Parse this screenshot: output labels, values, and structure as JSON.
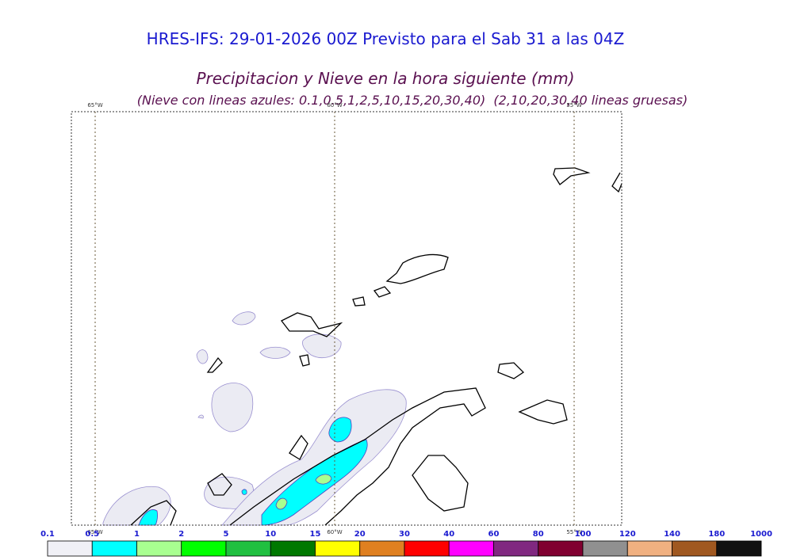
{
  "header": {
    "title": "HRES-IFS: 29-01-2026 00Z Previsto para el Sab 31 a las 04Z",
    "subtitle": "Precipitacion y Nieve en la hora siguiente (mm)",
    "note": "(Nieve con lineas azules: 0.1,0.5,1,2,5,10,15,20,30,40)  (2,10,20,30,40 lineas gruesas)"
  },
  "map": {
    "meridians": [
      "65°W",
      "60°W",
      "55°W"
    ]
  },
  "colorbar": {
    "labels": [
      0.1,
      0.5,
      1,
      2,
      5,
      10,
      15,
      20,
      30,
      40,
      60,
      80,
      100,
      120,
      140,
      180,
      1000
    ],
    "colors": [
      "#f0f0f6",
      "#00ffff",
      "#a8ff90",
      "#00ff00",
      "#20c040",
      "#007800",
      "#ffff00",
      "#e08020",
      "#ff0000",
      "#ff00ff",
      "#802880",
      "#800030",
      "#909090",
      "#f0b080",
      "#a05820",
      "#111111"
    ]
  }
}
